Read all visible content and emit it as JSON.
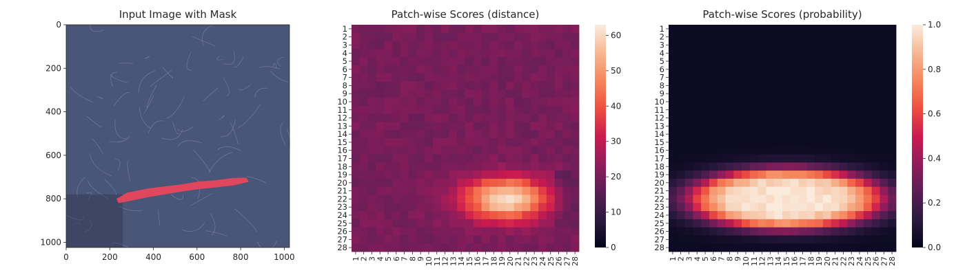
{
  "panels": [
    {
      "title": "Input Image with Mask",
      "x_ticks": [
        "0",
        "200",
        "400",
        "600",
        "800",
        "1000"
      ],
      "y_ticks": [
        "0",
        "200",
        "400",
        "600",
        "800",
        "1000"
      ]
    },
    {
      "title": "Patch-wise Scores (distance)",
      "colorbar_ticks": [
        "0",
        "10",
        "20",
        "30",
        "40",
        "50",
        "60"
      ]
    },
    {
      "title": "Patch-wise Scores (probability)",
      "colorbar_ticks": [
        "0.0",
        "0.2",
        "0.4",
        "0.6",
        "0.8",
        "1.0"
      ]
    }
  ],
  "chart_data": [
    {
      "type": "image",
      "title": "Input Image with Mask",
      "xlim": [
        0,
        1024
      ],
      "ylim": [
        1024,
        0
      ],
      "background_color": "#4a5677",
      "mask_color": "#e8475d",
      "mask_polygon": [
        [
          230,
          800
        ],
        [
          280,
          772
        ],
        [
          380,
          752
        ],
        [
          520,
          735
        ],
        [
          600,
          722
        ],
        [
          680,
          715
        ],
        [
          760,
          705
        ],
        [
          825,
          703
        ],
        [
          838,
          722
        ],
        [
          770,
          738
        ],
        [
          680,
          748
        ],
        [
          590,
          758
        ],
        [
          480,
          775
        ],
        [
          380,
          792
        ],
        [
          300,
          808
        ],
        [
          240,
          820
        ]
      ]
    },
    {
      "type": "heatmap",
      "title": "Patch-wise Scores (distance)",
      "rows": 28,
      "cols": 28,
      "colormap": "rocket",
      "vmin": 0,
      "vmax": 63,
      "background_value": 20,
      "blob": {
        "center_row": 22,
        "center_col": 19.5,
        "peak": 61,
        "row_spread": 2.8,
        "col_spread": 5.5
      }
    },
    {
      "type": "heatmap",
      "title": "Patch-wise Scores (probability)",
      "rows": 28,
      "cols": 28,
      "colormap": "rocket",
      "vmin": 0,
      "vmax": 1,
      "background_value": 0.03,
      "blob": {
        "center_row": 22,
        "center_col": 15,
        "peak": 1.0,
        "row_spread": 3.6,
        "col_spread": 11.5
      }
    }
  ]
}
